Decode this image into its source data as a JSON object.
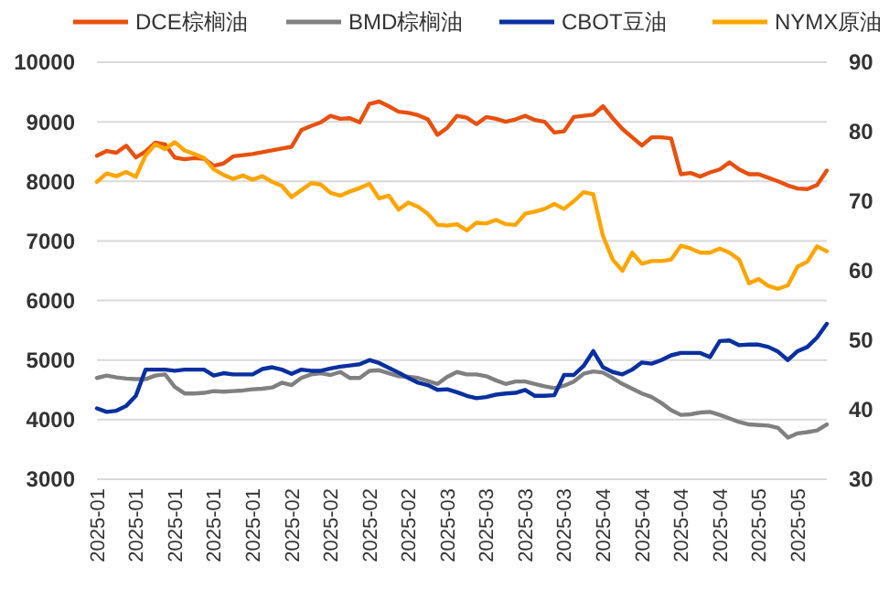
{
  "chart_data": {
    "type": "line",
    "categories": [
      "2025-01",
      null,
      null,
      null,
      "2025-01",
      null,
      null,
      null,
      "2025-01",
      null,
      null,
      null,
      "2025-01",
      null,
      null,
      null,
      "2025-01",
      null,
      null,
      null,
      "2025-02",
      null,
      null,
      null,
      "2025-02",
      null,
      null,
      null,
      "2025-02",
      null,
      null,
      null,
      "2025-02",
      null,
      null,
      null,
      "2025-03",
      null,
      null,
      null,
      "2025-03",
      null,
      null,
      null,
      "2025-03",
      null,
      null,
      null,
      "2025-03",
      null,
      null,
      null,
      "2025-04",
      null,
      null,
      null,
      "2025-04",
      null,
      null,
      null,
      "2025-04",
      null,
      null,
      null,
      "2025-04",
      null,
      null,
      null,
      "2025-05",
      null,
      null,
      null,
      "2025-05",
      null,
      null,
      null
    ],
    "series": [
      {
        "name": "DCE棕榈油",
        "color": "#e8500f",
        "values": [
          8430,
          8510,
          8480,
          8600,
          8400,
          8500,
          8650,
          8620,
          8400,
          8370,
          8390,
          8380,
          8260,
          8300,
          8420,
          8440,
          8460,
          8490,
          8520,
          8550,
          8580,
          8860,
          8930,
          8990,
          9100,
          9050,
          9060,
          8990,
          9300,
          9340,
          9260,
          9170,
          9150,
          9110,
          9040,
          8780,
          8900,
          9100,
          9070,
          8960,
          9080,
          9050,
          9000,
          9040,
          9100,
          9030,
          9000,
          8820,
          8840,
          9080,
          9100,
          9120,
          9260,
          9060,
          8880,
          8740,
          8600,
          8740,
          8740,
          8720,
          8120,
          8140,
          8080,
          8150,
          8200,
          8320,
          8200,
          8120,
          8120,
          8060,
          8000,
          7930,
          7880,
          7870,
          7940,
          8180
        ]
      },
      {
        "name": "BMD棕榈油",
        "color": "#808080",
        "values": [
          4700,
          4740,
          4710,
          4690,
          4680,
          4680,
          4740,
          4760,
          4550,
          4440,
          4440,
          4450,
          4480,
          4470,
          4480,
          4490,
          4510,
          4520,
          4540,
          4620,
          4580,
          4700,
          4760,
          4780,
          4750,
          4800,
          4700,
          4700,
          4820,
          4830,
          4780,
          4730,
          4720,
          4700,
          4650,
          4600,
          4720,
          4800,
          4760,
          4760,
          4730,
          4660,
          4600,
          4640,
          4640,
          4600,
          4560,
          4530,
          4570,
          4640,
          4770,
          4810,
          4790,
          4700,
          4600,
          4520,
          4440,
          4380,
          4280,
          4160,
          4080,
          4090,
          4120,
          4130,
          4080,
          4020,
          3960,
          3920,
          3910,
          3900,
          3860,
          3700,
          3770,
          3790,
          3820,
          3920
        ]
      },
      {
        "name": "CBOT豆油",
        "color": "#0a2fa0",
        "values": [
          4190,
          4130,
          4150,
          4230,
          4400,
          4840,
          4840,
          4840,
          4820,
          4840,
          4840,
          4840,
          4740,
          4780,
          4760,
          4760,
          4760,
          4850,
          4880,
          4840,
          4770,
          4840,
          4820,
          4820,
          4860,
          4890,
          4910,
          4930,
          5000,
          4950,
          4870,
          4790,
          4700,
          4620,
          4580,
          4500,
          4510,
          4460,
          4400,
          4360,
          4380,
          4420,
          4440,
          4450,
          4500,
          4400,
          4400,
          4410,
          4750,
          4750,
          4900,
          5150,
          4880,
          4800,
          4760,
          4840,
          4960,
          4940,
          5000,
          5080,
          5120,
          5120,
          5120,
          5050,
          5320,
          5330,
          5250,
          5260,
          5260,
          5220,
          5140,
          5000,
          5150,
          5220,
          5380,
          5610
        ]
      },
      {
        "name": "NYMX原油",
        "color": "#ffa500",
        "axis": "y2",
        "values": [
          72.8,
          74,
          73.6,
          74.2,
          73.5,
          76.6,
          78.2,
          77.5,
          78.5,
          77.3,
          76.8,
          76.2,
          74.6,
          73.8,
          73.2,
          73.7,
          73.1,
          73.6,
          72.8,
          72.2,
          70.6,
          71.6,
          72.6,
          72.4,
          71.2,
          70.8,
          71.4,
          71.9,
          72.5,
          70.4,
          70.8,
          68.8,
          69.8,
          69.2,
          68.2,
          66.6,
          66.5,
          66.7,
          65.8,
          66.9,
          66.8,
          67.3,
          66.7,
          66.6,
          68.2,
          68.5,
          68.9,
          69.6,
          68.9,
          70,
          71.3,
          71,
          65,
          61.6,
          60,
          62.6,
          61,
          61.4,
          61.4,
          61.6,
          63.6,
          63.2,
          62.6,
          62.6,
          63.2,
          62.6,
          61.6,
          58.2,
          58.8,
          57.8,
          57.4,
          57.9,
          60.6,
          61.3,
          63.5,
          62.8
        ]
      }
    ],
    "ylim": [
      3000,
      10000
    ],
    "yticks": [
      3000,
      4000,
      5000,
      6000,
      7000,
      8000,
      9000,
      10000
    ],
    "y2lim": [
      30,
      90
    ],
    "y2ticks": [
      30,
      40,
      50,
      60,
      70,
      80,
      90
    ],
    "grid": "y",
    "legend": "top",
    "marker": "none",
    "line_style": "solid"
  }
}
